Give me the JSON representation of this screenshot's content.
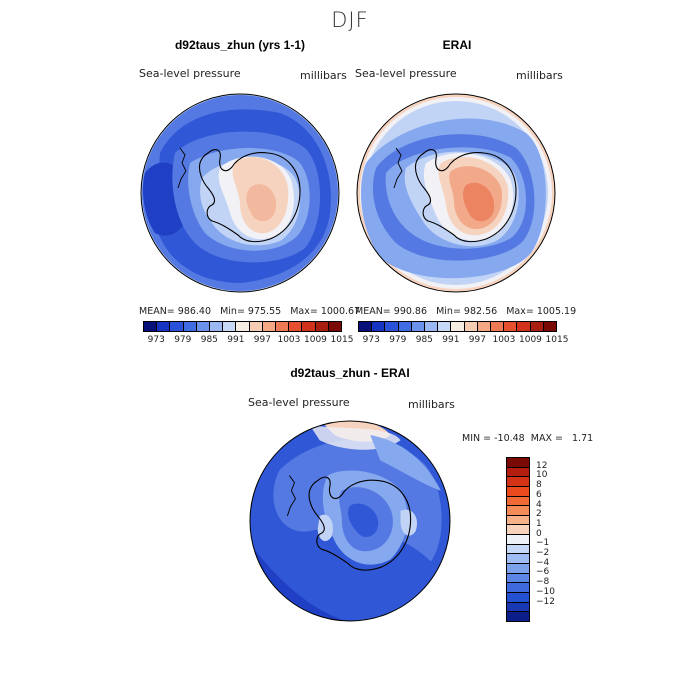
{
  "season": "DJF",
  "panel1": {
    "title": "d92taus_zhun (yrs 1-1)",
    "variable": "Sea-level pressure",
    "units": "millibars",
    "stats": "MEAN= 986.40   Min= 975.55   Max= 1000.67"
  },
  "panel2": {
    "title": "ERAI",
    "variable": "Sea-level pressure",
    "units": "millibars",
    "stats": "MEAN= 990.86   Min= 982.56   Max= 1005.19"
  },
  "panel3": {
    "title": "d92taus_zhun - ERAI",
    "variable": "Sea-level pressure",
    "units": "millibars",
    "stats": "MIN = -10.48  MAX =   1.71"
  },
  "colorbar_top": {
    "colors": [
      "#08107a",
      "#1733c2",
      "#2a52d8",
      "#3f6ce0",
      "#6b92ea",
      "#9cb8f3",
      "#c8d9f7",
      "#f5ece4",
      "#f6cdb2",
      "#f3a782",
      "#ee7a55",
      "#e6502e",
      "#d0321c",
      "#a81e10",
      "#7a0a05"
    ],
    "ticks": [
      "973",
      "979",
      "985",
      "991",
      "997",
      "1003",
      "1009",
      "1015"
    ]
  },
  "colorbar_diff": {
    "colors": [
      "#7a0a05",
      "#b41e10",
      "#d43216",
      "#ea4a1e",
      "#f06a35",
      "#f48b58",
      "#f6b08a",
      "#f7d3bd",
      "#edf1f8",
      "#c6daf7",
      "#9fbdf2",
      "#7da2ec",
      "#5c86e6",
      "#3e6ade",
      "#2450d2",
      "#1838b4",
      "#0b1e8a"
    ],
    "ticks": [
      "12",
      "10",
      "8",
      "6",
      "4",
      "2",
      "1",
      "0",
      "−1",
      "−2",
      "−4",
      "−6",
      "−8",
      "−10",
      "−12"
    ]
  },
  "map_colors": {
    "deep_blue": "#1f3fc4",
    "blue": "#3058d6",
    "mid_blue": "#5579e2",
    "light_blue": "#86a8ee",
    "pale_blue": "#c2d4f6",
    "white": "#f1f1f6",
    "peach": "#f6d3bf",
    "salmon": "#f2a98a",
    "orange": "#ec8462"
  }
}
